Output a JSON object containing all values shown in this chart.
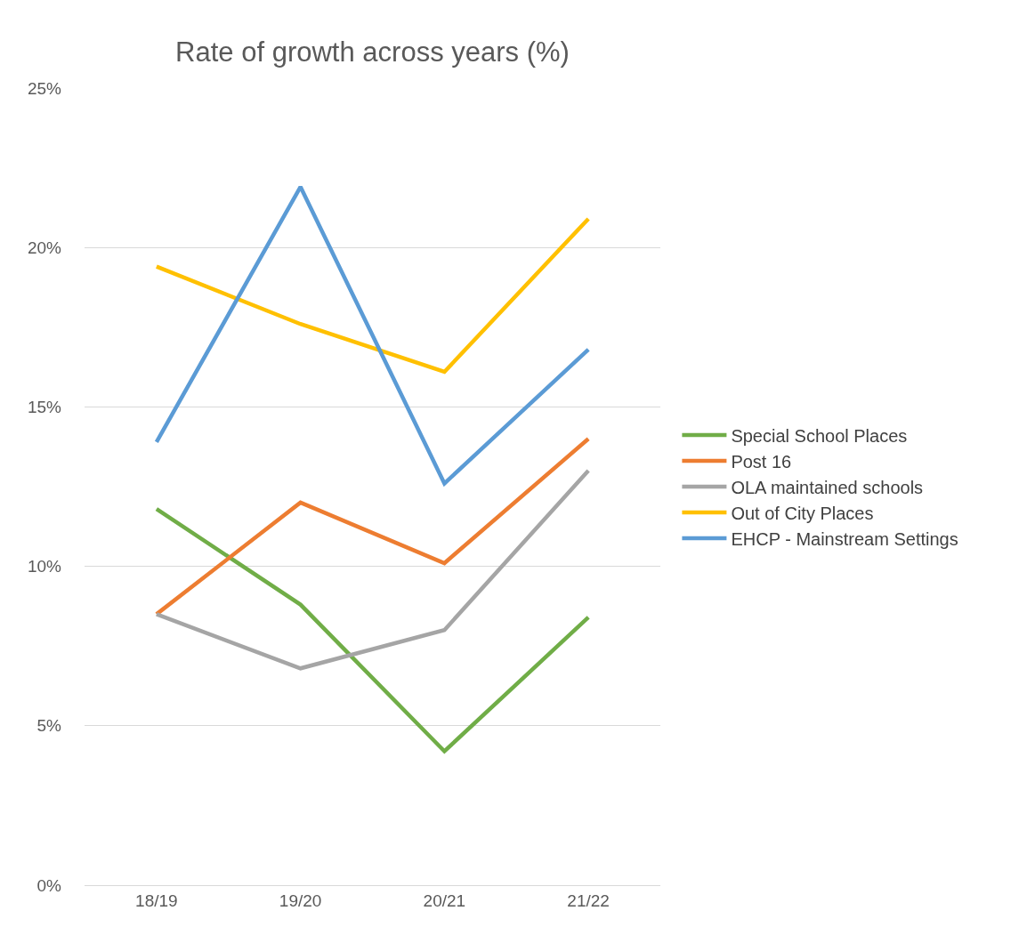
{
  "chart_data": {
    "type": "line",
    "title": "Rate of growth across years (%)",
    "categories": [
      "18/19",
      "19/20",
      "20/21",
      "21/22"
    ],
    "series": [
      {
        "name": "Special School Places",
        "color": "#70ad47",
        "values": [
          11.8,
          8.8,
          4.2,
          8.4
        ]
      },
      {
        "name": "Post 16",
        "color": "#ed7d31",
        "values": [
          8.5,
          12.0,
          10.1,
          14.0
        ]
      },
      {
        "name": "OLA maintained schools",
        "color": "#a5a5a5",
        "values": [
          8.5,
          6.8,
          8.0,
          13.0
        ]
      },
      {
        "name": "Out of City Places",
        "color": "#ffc000",
        "values": [
          19.4,
          17.6,
          16.1,
          20.9
        ]
      },
      {
        "name": "EHCP - Mainstream Settings",
        "color": "#5b9bd5",
        "values": [
          13.9,
          21.9,
          12.6,
          16.8
        ]
      }
    ],
    "ylim": [
      0,
      25
    ],
    "yticks": [
      {
        "value": 0,
        "label": "0%"
      },
      {
        "value": 5,
        "label": "5%"
      },
      {
        "value": 10,
        "label": "10%"
      },
      {
        "value": 15,
        "label": "15%"
      },
      {
        "value": 20,
        "label": "20%"
      },
      {
        "value": 25,
        "label": "25%"
      }
    ],
    "grid": "y",
    "legend": "right",
    "marker": "none",
    "line_style": "solid"
  }
}
